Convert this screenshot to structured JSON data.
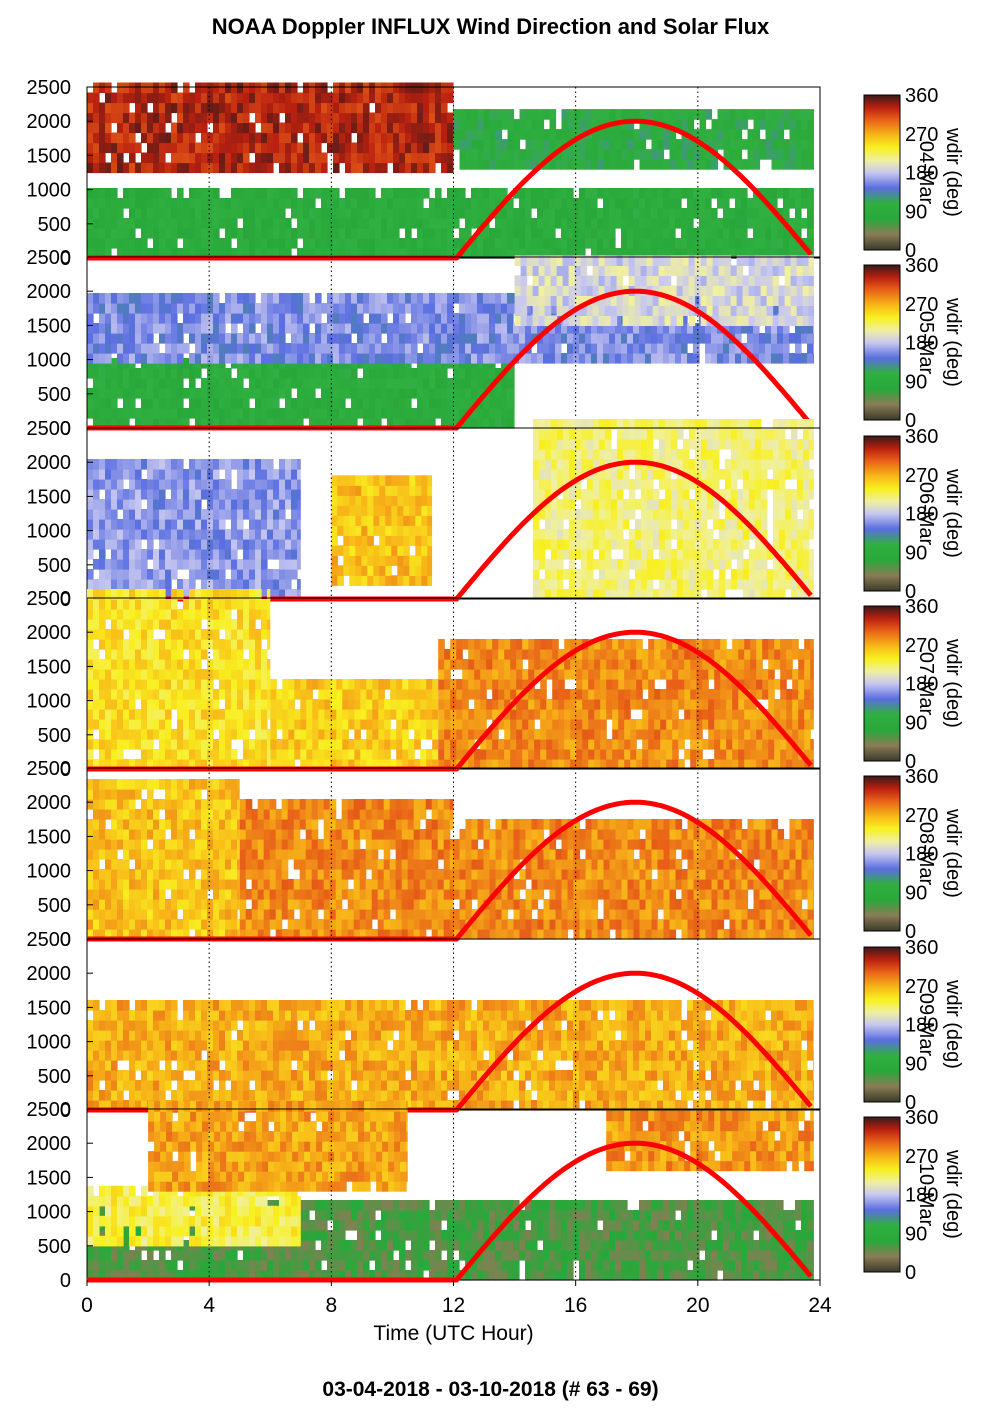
{
  "page_title": "NOAA Doppler INFLUX Wind Direction and Solar Flux",
  "date_range": "03-04-2018 - 03-10-2018   (# 63 - 69)",
  "colors": {
    "solar_curve": "#ff0000",
    "wind_colormap": [
      "#4a4a3a",
      "#8a7c55",
      "#28a83a",
      "#30b040",
      "#5a6ee0",
      "#c8c8f0",
      "#f0f0a0",
      "#f8f020",
      "#f8b818",
      "#e86018",
      "#b82010",
      "#6a1010",
      "#3a2a2a"
    ]
  },
  "chart_data": {
    "type": "heatmap",
    "xlabel": "Time (UTC Hour)",
    "x_ticks": [
      "0",
      "4",
      "8",
      "12",
      "16",
      "20",
      "24"
    ],
    "xlim": [
      0,
      24
    ],
    "ylim": [
      0,
      2500
    ],
    "y_ticks": [
      "0",
      "500",
      "1000",
      "1500",
      "2000",
      "2500"
    ],
    "grid": "dotted vertical lines at 4, 8, 12, 16, 20, 24",
    "colorbar": {
      "label": "wdir (deg)",
      "range": [
        0,
        360
      ],
      "ticks": [
        "0",
        "90",
        "180",
        "270",
        "360"
      ]
    },
    "solar_flux": {
      "description": "half-sine solar curve",
      "rise_hour": 12.1,
      "peak_hour": 18,
      "set_hour": 23.8,
      "peak_level": 2000
    },
    "panels": [
      {
        "day_label": "04-Mar",
        "dominant_wind_deg": "mixed 90-330",
        "layers": [
          {
            "x": [
              0,
              23.8
            ],
            "y": [
              0,
              950
            ],
            "deg": 90
          },
          {
            "x": [
              0,
              12
            ],
            "y": [
              1250,
              2500
            ],
            "deg": 330
          },
          {
            "x": [
              12,
              23.8
            ],
            "y": [
              1300,
              2150
            ],
            "deg": 100
          }
        ]
      },
      {
        "day_label": "05-Mar",
        "dominant_wind_deg": "90-160",
        "layers": [
          {
            "x": [
              0,
              14
            ],
            "y": [
              0,
              950
            ],
            "deg": 90
          },
          {
            "x": [
              0,
              23.8
            ],
            "y": [
              950,
              1900
            ],
            "deg": 155
          },
          {
            "x": [
              14,
              23.8
            ],
            "y": [
              1500,
              2500
            ],
            "deg": 190
          }
        ]
      },
      {
        "day_label": "06-Mar",
        "dominant_wind_deg": "150-260",
        "layers": [
          {
            "x": [
              0,
              7
            ],
            "y": [
              0,
              2000
            ],
            "deg": 160
          },
          {
            "x": [
              8,
              11.3
            ],
            "y": [
              200,
              1800
            ],
            "deg": 260
          },
          {
            "x": [
              14.6,
              23.8
            ],
            "y": [
              0,
              2500
            ],
            "deg": 220
          }
        ]
      },
      {
        "day_label": "07-Mar",
        "dominant_wind_deg": "240-290",
        "layers": [
          {
            "x": [
              0,
              6
            ],
            "y": [
              0,
              2500
            ],
            "deg": 245
          },
          {
            "x": [
              6,
              11.5
            ],
            "y": [
              0,
              1200
            ],
            "deg": 255
          },
          {
            "x": [
              11.5,
              23.8
            ],
            "y": [
              0,
              1900
            ],
            "deg": 285
          }
        ]
      },
      {
        "day_label": "08-Mar",
        "dominant_wind_deg": "260-300",
        "layers": [
          {
            "x": [
              0,
              5
            ],
            "y": [
              0,
              2300
            ],
            "deg": 260
          },
          {
            "x": [
              5,
              12
            ],
            "y": [
              0,
              2000
            ],
            "deg": 285
          },
          {
            "x": [
              12,
              23.8
            ],
            "y": [
              0,
              1700
            ],
            "deg": 285
          }
        ]
      },
      {
        "day_label": "09-Mar",
        "dominant_wind_deg": "260-285",
        "layers": [
          {
            "x": [
              0,
              23.8
            ],
            "y": [
              0,
              1500
            ],
            "deg": 270
          }
        ]
      },
      {
        "day_label": "10-Mar",
        "dominant_wind_deg": "mixed 30-290",
        "layers": [
          {
            "x": [
              0,
              23.8
            ],
            "y": [
              0,
              1100
            ],
            "deg": 60
          },
          {
            "x": [
              0,
              7
            ],
            "y": [
              500,
              1300
            ],
            "deg": 230
          },
          {
            "x": [
              2,
              10.5
            ],
            "y": [
              1300,
              2500
            ],
            "deg": 275
          },
          {
            "x": [
              17,
              23.8
            ],
            "y": [
              1600,
              2400
            ],
            "deg": 280
          }
        ]
      }
    ]
  }
}
